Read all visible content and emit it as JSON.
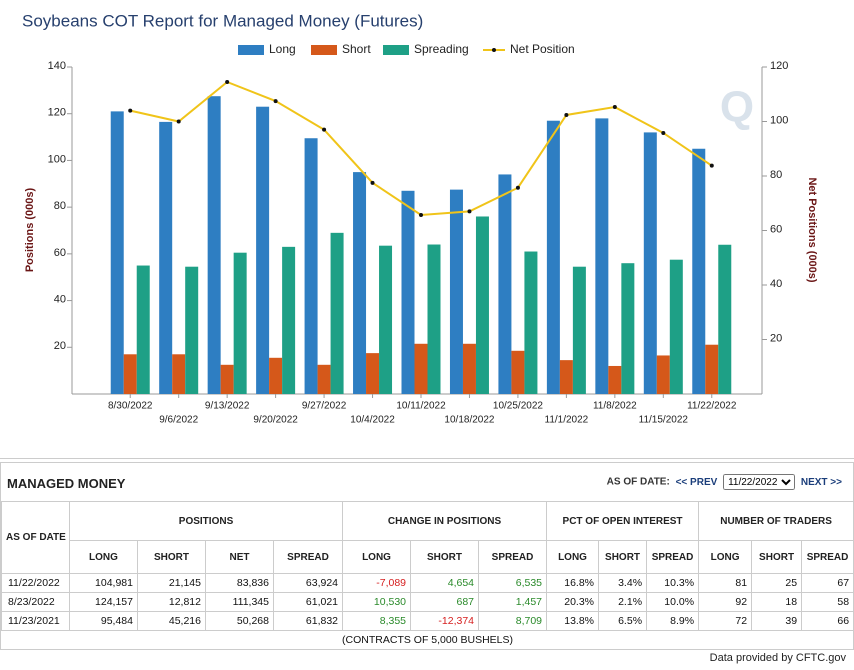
{
  "chart_data": {
    "type": "bar",
    "title": "Soybeans COT Report for Managed Money (Futures)",
    "y_label": "Positions (000s)",
    "y2_label": "Net Positions (000s)",
    "legend": "top",
    "categories": [
      "8/30/2022",
      "9/6/2022",
      "9/13/2022",
      "9/20/2022",
      "9/27/2022",
      "10/4/2022",
      "10/11/2022",
      "10/18/2022",
      "10/25/2022",
      "11/1/2022",
      "11/8/2022",
      "11/15/2022",
      "11/22/2022"
    ],
    "series": [
      {
        "name": "Long",
        "type": "bar",
        "color": "#2e7ec2",
        "values": [
          121,
          116.5,
          127.5,
          123,
          109.5,
          95,
          87,
          87.5,
          94,
          117,
          118,
          112,
          105
        ]
      },
      {
        "name": "Short",
        "type": "bar",
        "color": "#d5581a",
        "values": [
          17,
          17,
          12.5,
          15.5,
          12.5,
          17.5,
          21.5,
          21.5,
          18.5,
          14.5,
          12,
          16.5,
          21.1
        ]
      },
      {
        "name": "Spreading",
        "type": "bar",
        "color": "#1ea086",
        "values": [
          55,
          54.5,
          60.5,
          63,
          69,
          63.5,
          64,
          76,
          61,
          54.5,
          56,
          57.5,
          63.9
        ]
      },
      {
        "name": "Net Position",
        "type": "line",
        "axis": "y2",
        "color": "#f0c419",
        "values": [
          104,
          100,
          114.5,
          107.5,
          97,
          77.5,
          65.7,
          67,
          75.7,
          102.4,
          105.3,
          95.8,
          83.8
        ]
      }
    ],
    "ylim": [
      0,
      140
    ],
    "yticks": [
      20,
      40,
      60,
      80,
      100,
      120,
      140
    ],
    "y2lim": [
      0,
      120
    ],
    "y2ticks": [
      20,
      40,
      60,
      80,
      100,
      120
    ],
    "grid": false
  },
  "table": {
    "title": "MANAGED MONEY",
    "as_of_label": "AS OF DATE:",
    "prev": "<< PREV",
    "selected_date": "11/22/2022",
    "next": "NEXT >>",
    "row_header": "AS OF DATE",
    "groups": [
      "POSITIONS",
      "CHANGE IN POSITIONS",
      "PCT OF OPEN INTEREST",
      "NUMBER OF TRADERS"
    ],
    "columns": [
      "LONG",
      "SHORT",
      "NET",
      "SPREAD",
      "LONG",
      "SHORT",
      "SPREAD",
      "LONG",
      "SHORT",
      "SPREAD",
      "LONG",
      "SHORT",
      "SPREAD"
    ],
    "rows": [
      [
        "11/22/2022",
        "104,981",
        "21,145",
        "83,836",
        "63,924",
        "-7,089",
        "4,654",
        "6,535",
        "16.8%",
        "3.4%",
        "10.3%",
        "81",
        "25",
        "67"
      ],
      [
        "8/23/2022",
        "124,157",
        "12,812",
        "111,345",
        "61,021",
        "10,530",
        "687",
        "1,457",
        "20.3%",
        "2.1%",
        "10.0%",
        "92",
        "18",
        "58"
      ],
      [
        "11/23/2021",
        "95,484",
        "45,216",
        "50,268",
        "61,832",
        "8,355",
        "-12,374",
        "8,709",
        "13.8%",
        "6.5%",
        "8.9%",
        "72",
        "39",
        "66"
      ]
    ],
    "note": "(CONTRACTS OF 5,000 BUSHELS)"
  },
  "footer": "Data provided by CFTC.gov"
}
